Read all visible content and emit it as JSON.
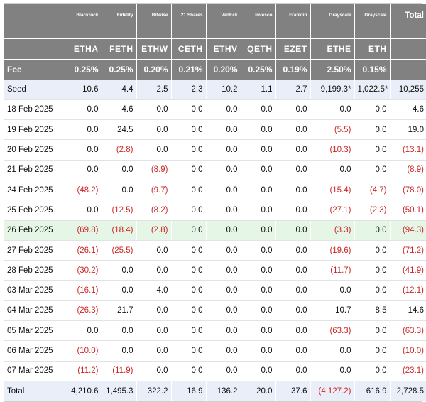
{
  "issuers": [
    "Blackrock",
    "Fidelity",
    "Bitwise",
    "21 Shares",
    "VanEck",
    "Invesco",
    "Franklin",
    "Grayscale",
    "Grayscale"
  ],
  "total_label": "Total",
  "tickers": [
    "ETHA",
    "FETH",
    "ETHW",
    "CETH",
    "ETHV",
    "QETH",
    "EZET",
    "ETHE",
    "ETH"
  ],
  "fee_label": "Fee",
  "fees": [
    "0.25%",
    "0.25%",
    "0.20%",
    "0.21%",
    "0.20%",
    "0.25%",
    "0.19%",
    "2.50%",
    "0.15%"
  ],
  "rows": [
    {
      "label": "Seed",
      "style": "seed",
      "values": [
        "10.6",
        "4.4",
        "2.5",
        "2.3",
        "10.2",
        "1.1",
        "2.7",
        "9,199.3*",
        "1,022.5*"
      ],
      "total": "10,255"
    },
    {
      "label": "18 Feb 2025",
      "style": "",
      "values": [
        "0.0",
        "4.6",
        "0.0",
        "0.0",
        "0.0",
        "0.0",
        "0.0",
        "0.0",
        "0.0"
      ],
      "total": "4.6"
    },
    {
      "label": "19 Feb 2025",
      "style": "",
      "values": [
        "0.0",
        "24.5",
        "0.0",
        "0.0",
        "0.0",
        "0.0",
        "0.0",
        "(5.5)",
        "0.0"
      ],
      "total": "19.0"
    },
    {
      "label": "20 Feb 2025",
      "style": "",
      "values": [
        "0.0",
        "(2.8)",
        "0.0",
        "0.0",
        "0.0",
        "0.0",
        "0.0",
        "(10.3)",
        "0.0"
      ],
      "total": "(13.1)"
    },
    {
      "label": "21 Feb 2025",
      "style": "",
      "values": [
        "0.0",
        "0.0",
        "(8.9)",
        "0.0",
        "0.0",
        "0.0",
        "0.0",
        "0.0",
        "0.0"
      ],
      "total": "(8.9)"
    },
    {
      "label": "24 Feb 2025",
      "style": "",
      "values": [
        "(48.2)",
        "0.0",
        "(9.7)",
        "0.0",
        "0.0",
        "0.0",
        "0.0",
        "(15.4)",
        "(4.7)"
      ],
      "total": "(78.0)"
    },
    {
      "label": "25 Feb 2025",
      "style": "",
      "values": [
        "0.0",
        "(12.5)",
        "(8.2)",
        "0.0",
        "0.0",
        "0.0",
        "0.0",
        "(27.1)",
        "(2.3)"
      ],
      "total": "(50.1)"
    },
    {
      "label": "26 Feb 2025",
      "style": "highlight",
      "values": [
        "(69.8)",
        "(18.4)",
        "(2.8)",
        "0.0",
        "0.0",
        "0.0",
        "0.0",
        "(3.3)",
        "0.0"
      ],
      "total": "(94.3)"
    },
    {
      "label": "27 Feb 2025",
      "style": "",
      "values": [
        "(26.1)",
        "(25.5)",
        "0.0",
        "0.0",
        "0.0",
        "0.0",
        "0.0",
        "(19.6)",
        "0.0"
      ],
      "total": "(71.2)"
    },
    {
      "label": "28 Feb 2025",
      "style": "",
      "values": [
        "(30.2)",
        "0.0",
        "0.0",
        "0.0",
        "0.0",
        "0.0",
        "0.0",
        "(11.7)",
        "0.0"
      ],
      "total": "(41.9)"
    },
    {
      "label": "03 Mar 2025",
      "style": "",
      "values": [
        "(16.1)",
        "0.0",
        "4.0",
        "0.0",
        "0.0",
        "0.0",
        "0.0",
        "0.0",
        "0.0"
      ],
      "total": "(12.1)"
    },
    {
      "label": "04 Mar 2025",
      "style": "",
      "values": [
        "(26.3)",
        "21.7",
        "0.0",
        "0.0",
        "0.0",
        "0.0",
        "0.0",
        "10.7",
        "8.5"
      ],
      "total": "14.6"
    },
    {
      "label": "05 Mar 2025",
      "style": "",
      "values": [
        "0.0",
        "0.0",
        "0.0",
        "0.0",
        "0.0",
        "0.0",
        "0.0",
        "(63.3)",
        "0.0"
      ],
      "total": "(63.3)"
    },
    {
      "label": "06 Mar 2025",
      "style": "",
      "values": [
        "(10.0)",
        "0.0",
        "0.0",
        "0.0",
        "0.0",
        "0.0",
        "0.0",
        "0.0",
        "0.0"
      ],
      "total": "(10.0)"
    },
    {
      "label": "07 Mar 2025",
      "style": "",
      "values": [
        "(11.2)",
        "(11.9)",
        "0.0",
        "0.0",
        "0.0",
        "0.0",
        "0.0",
        "0.0",
        "0.0"
      ],
      "total": "(23.1)"
    },
    {
      "label": "Total",
      "style": "total-row",
      "values": [
        "4,210.6",
        "1,495.3",
        "322.2",
        "16.9",
        "136.2",
        "20.0",
        "37.6",
        "(4,127.2)",
        "616.9"
      ],
      "total": "2,728.5"
    }
  ]
}
